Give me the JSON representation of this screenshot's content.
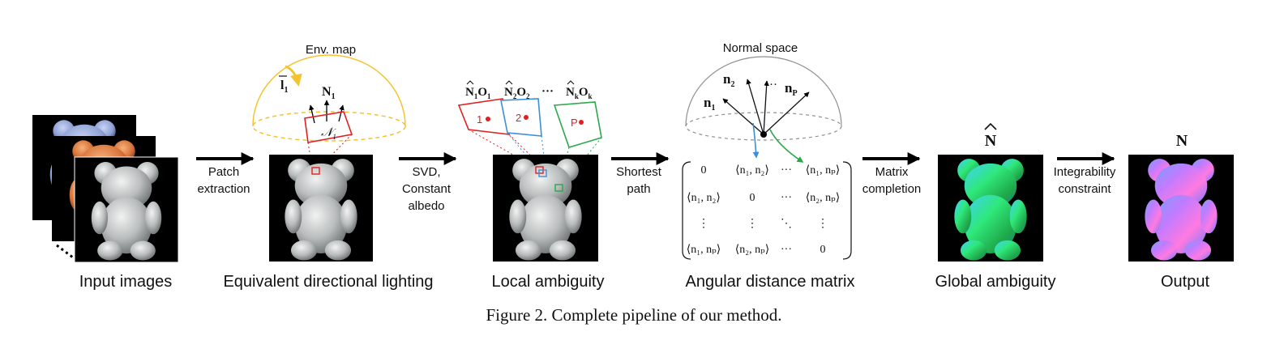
{
  "stages": {
    "input": "Input images",
    "lighting": "Equivalent directional lighting",
    "local": "Local ambiguity",
    "matrix": "Angular distance matrix",
    "global": "Global ambiguity",
    "output": "Output"
  },
  "steps": {
    "patch_1": "Patch",
    "patch_2": "extraction",
    "svd_1": "SVD,",
    "svd_2": "Constant",
    "svd_3": "albedo",
    "short_1": "Shortest",
    "short_2": "path",
    "matrix_1": "Matrix",
    "matrix_2": "completion",
    "integ_1": "Integrability",
    "integ_2": "constraint"
  },
  "labels": {
    "env_map": "Env. map",
    "normal_space": "Normal space",
    "light_l": "l",
    "light_sub": "1",
    "normal_N": "N",
    "normal_sub": "1",
    "patch_script": "𝒩",
    "patch_script_sub": "1",
    "no1_N": "N",
    "no1_a": "1",
    "no1_O": "O",
    "no1_b": "1",
    "no2_N": "N",
    "no2_a": "2",
    "no2_O": "O",
    "no2_b": "2",
    "nok_N": "N",
    "nok_a": "k",
    "nok_O": "O",
    "nok_b": "k",
    "ellipsis": "···",
    "patch_1": "1",
    "patch_2": "2",
    "patch_p": "P",
    "n1": "n",
    "n1_sub": "1",
    "n2": "n",
    "n2_sub": "2",
    "np": "n",
    "np_sub": "P",
    "n_dots": "···",
    "global_label": "N",
    "output_label": "N"
  },
  "matrix": {
    "r1c1": "0",
    "r1c2": "⟨n₁, n₂⟩",
    "r1c3": "···",
    "r1c4": "⟨n₁, nₚ⟩",
    "r2c1": "⟨n₁, n₂⟩",
    "r2c2": "0",
    "r2c3": "···",
    "r2c4": "⟨n₂, nₚ⟩",
    "r3c1": "⋮",
    "r3c2": "⋮",
    "r3c3": "⋱",
    "r3c4": "⋮",
    "r4c1": "⟨n₁, nₚ⟩",
    "r4c2": "⟨n₂, nₚ⟩",
    "r4c3": "···",
    "r4c4": "0"
  },
  "caption": "Figure 2. Complete pipeline of our method.",
  "colors": {
    "env_map": "#f4c430",
    "patch_red": "#e02020",
    "patch_blue": "#3a8fd8",
    "patch_green": "#2aa84a",
    "sphere": "#909090",
    "text": "#111111"
  }
}
